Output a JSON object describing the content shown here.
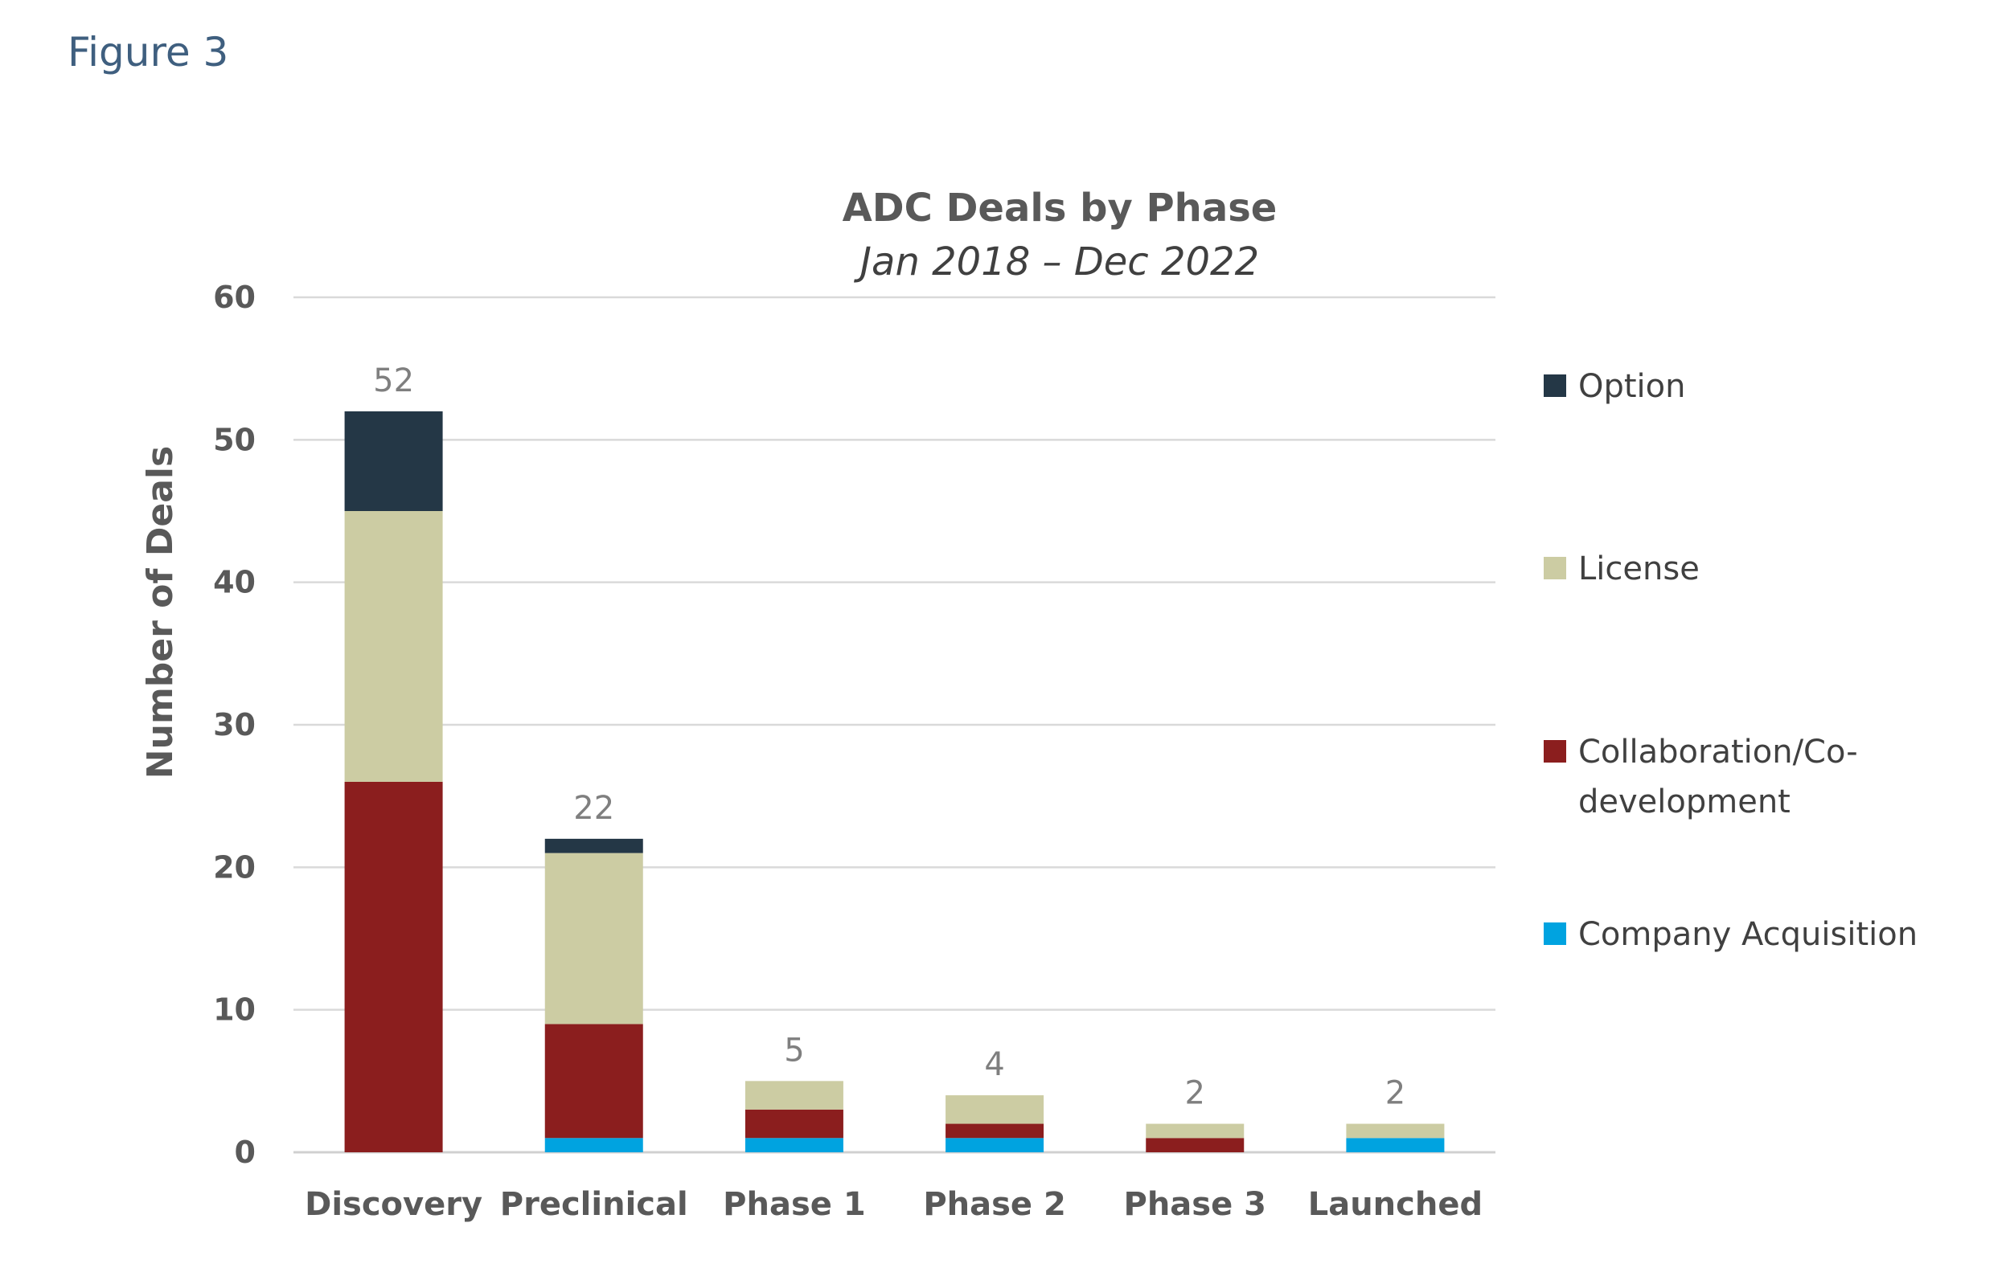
{
  "figure_label": "Figure 3",
  "chart_data": {
    "type": "bar",
    "stacked": true,
    "title": "ADC Deals by Phase",
    "subtitle": "Jan 2018 – Dec 2022",
    "ylabel": "Number of Deals",
    "xlabel": "",
    "ylim": [
      0,
      60
    ],
    "yticks": [
      0,
      10,
      20,
      30,
      40,
      50,
      60
    ],
    "grid": true,
    "legend_position": "right",
    "categories": [
      "Discovery",
      "Preclinical",
      "Phase 1",
      "Phase 2",
      "Phase 3",
      "Launched"
    ],
    "series": [
      {
        "name": "Company Acquisition",
        "color": "#00a3e0",
        "values": [
          0,
          1,
          1,
          1,
          0,
          1
        ]
      },
      {
        "name": "Collaboration/Co-development",
        "legend_lines": [
          "Collaboration/Co-",
          "development"
        ],
        "color": "#8b1e1e",
        "values": [
          26,
          8,
          2,
          1,
          1,
          0
        ]
      },
      {
        "name": "License",
        "color": "#cccca3",
        "values": [
          19,
          12,
          2,
          2,
          1,
          1
        ]
      },
      {
        "name": "Option",
        "color": "#243746",
        "values": [
          7,
          1,
          0,
          0,
          0,
          0
        ]
      }
    ],
    "totals": [
      52,
      22,
      5,
      4,
      2,
      2
    ],
    "legend_order": [
      "Option",
      "License",
      "Collaboration/Co-development",
      "Company Acquisition"
    ]
  }
}
